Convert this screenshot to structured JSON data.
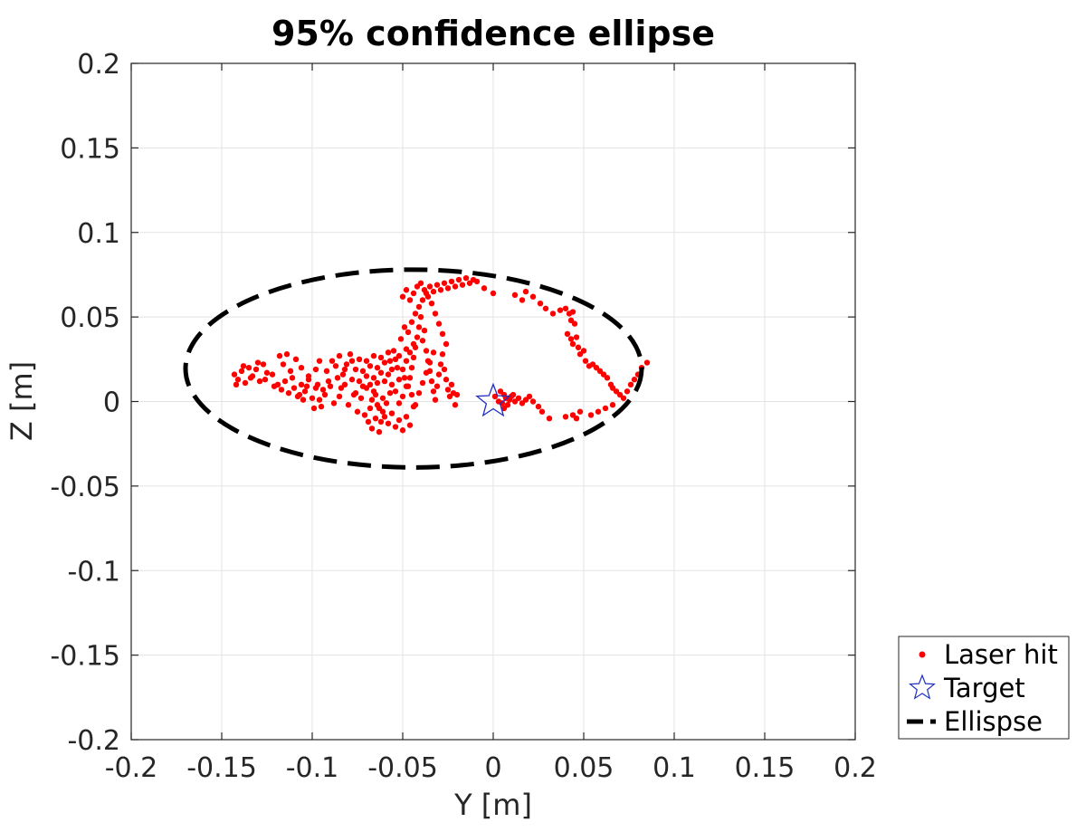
{
  "chart_data": {
    "type": "scatter",
    "title": "95% confidence ellipse",
    "xlabel": "Y [m]",
    "ylabel": "Z [m]",
    "xlim": [
      -0.2,
      0.2
    ],
    "ylim": [
      -0.2,
      0.2
    ],
    "xticks": [
      "-0.2",
      "-0.15",
      "-0.1",
      "-0.05",
      "0",
      "0.05",
      "0.1",
      "0.15",
      "0.2"
    ],
    "yticks": [
      "0.2",
      "0.15",
      "0.1",
      "0.05",
      "0",
      "-0.05",
      "-0.1",
      "-0.15",
      "-0.2"
    ],
    "grid": true,
    "legend": {
      "position": "bottom-right-outside",
      "entries": [
        "Laser hit",
        "Target",
        "Ellispse"
      ]
    },
    "series": [
      {
        "name": "Laser hit",
        "marker": "dot",
        "color": "#ff0000",
        "points": [
          [
            -0.143,
            0.016
          ],
          [
            -0.141,
            0.013
          ],
          [
            -0.139,
            0.018
          ],
          [
            -0.137,
            0.011
          ],
          [
            -0.135,
            0.02
          ],
          [
            -0.133,
            0.015
          ],
          [
            -0.131,
            0.019
          ],
          [
            -0.129,
            0.012
          ],
          [
            -0.127,
            0.022
          ],
          [
            -0.125,
            0.017
          ],
          [
            -0.142,
            0.01
          ],
          [
            -0.138,
            0.021
          ],
          [
            -0.134,
            0.014
          ],
          [
            -0.13,
            0.023
          ],
          [
            -0.126,
            0.013
          ],
          [
            -0.122,
            0.016
          ],
          [
            -0.119,
            0.01
          ],
          [
            -0.117,
            0.007
          ],
          [
            -0.115,
            0.012
          ],
          [
            -0.113,
            0.005
          ],
          [
            -0.121,
            0.009
          ],
          [
            -0.118,
            0.027
          ],
          [
            -0.116,
            0.022
          ],
          [
            -0.114,
            0.028
          ],
          [
            -0.112,
            0.018
          ],
          [
            -0.11,
            0.008
          ],
          [
            -0.108,
            0.003
          ],
          [
            -0.106,
            0.01
          ],
          [
            -0.104,
            0.006
          ],
          [
            -0.102,
            0.013
          ],
          [
            -0.1,
            0.002
          ],
          [
            -0.099,
            -0.004
          ],
          [
            -0.098,
            0.008
          ],
          [
            -0.096,
            0.001
          ],
          [
            -0.095,
            -0.003
          ],
          [
            -0.094,
            0.007
          ],
          [
            -0.092,
            0.018
          ],
          [
            -0.091,
            0.012
          ],
          [
            -0.089,
            0.024
          ],
          [
            -0.087,
            0.021
          ],
          [
            -0.085,
            0.027
          ],
          [
            -0.083,
            0.016
          ],
          [
            -0.081,
            0.022
          ],
          [
            -0.079,
            0.028
          ],
          [
            -0.078,
            0.013
          ],
          [
            -0.076,
            0.019
          ],
          [
            -0.074,
            0.025
          ],
          [
            -0.072,
            0.009
          ],
          [
            -0.07,
            0.015
          ],
          [
            -0.068,
            0.021
          ],
          [
            -0.066,
            0.027
          ],
          [
            -0.064,
            0.011
          ],
          [
            -0.062,
            0.017
          ],
          [
            -0.06,
            0.023
          ],
          [
            -0.058,
            0.029
          ],
          [
            -0.056,
            0.019
          ],
          [
            -0.054,
            0.025
          ],
          [
            -0.052,
            0.013
          ],
          [
            -0.085,
            0.003
          ],
          [
            -0.082,
            0.01
          ],
          [
            -0.08,
            -0.002
          ],
          [
            -0.077,
            0.004
          ],
          [
            -0.075,
            -0.006
          ],
          [
            -0.073,
            0.002
          ],
          [
            -0.071,
            -0.008
          ],
          [
            -0.069,
            -0.012
          ],
          [
            -0.067,
            -0.016
          ],
          [
            -0.065,
            -0.01
          ],
          [
            -0.063,
            -0.018
          ],
          [
            -0.061,
            -0.006
          ],
          [
            -0.068,
            -0.004
          ],
          [
            -0.066,
            0.006
          ],
          [
            -0.064,
            -0.002
          ],
          [
            -0.062,
            -0.012
          ],
          [
            -0.06,
            -0.009
          ],
          [
            -0.058,
            -0.013
          ],
          [
            -0.056,
            -0.007
          ],
          [
            -0.054,
            -0.015
          ],
          [
            -0.052,
            -0.011
          ],
          [
            -0.05,
            -0.017
          ],
          [
            -0.048,
            -0.009
          ],
          [
            -0.046,
            -0.014
          ],
          [
            -0.044,
            -0.003
          ],
          [
            -0.07,
            0.008
          ],
          [
            -0.067,
            0.001
          ],
          [
            -0.065,
            0.004
          ],
          [
            -0.063,
            -0.004
          ],
          [
            -0.061,
            0.002
          ],
          [
            -0.059,
            -0.001
          ],
          [
            -0.057,
            0.005
          ],
          [
            -0.05,
            0.003
          ],
          [
            -0.048,
            0.009
          ],
          [
            -0.046,
            0.014
          ],
          [
            -0.045,
            0.02
          ],
          [
            -0.044,
            0.026
          ],
          [
            -0.043,
            0.032
          ],
          [
            -0.042,
            0.038
          ],
          [
            -0.041,
            0.044
          ],
          [
            -0.04,
            0.05
          ],
          [
            -0.039,
            0.036
          ],
          [
            -0.038,
            0.042
          ],
          [
            -0.037,
            0.03
          ],
          [
            -0.036,
            0.024
          ],
          [
            -0.035,
            0.018
          ],
          [
            -0.034,
            0.012
          ],
          [
            -0.033,
            0.006
          ],
          [
            -0.032,
            0.001
          ],
          [
            -0.031,
            0.009
          ],
          [
            -0.03,
            0.016
          ],
          [
            -0.029,
            0.022
          ],
          [
            -0.028,
            0.028
          ],
          [
            -0.027,
            0.019
          ],
          [
            -0.026,
            0.013
          ],
          [
            -0.025,
            0.007
          ],
          [
            -0.024,
            0.003
          ],
          [
            -0.023,
            0.01
          ],
          [
            -0.022,
            0.005
          ],
          [
            -0.021,
            -0.002
          ],
          [
            -0.02,
            0.004
          ],
          [
            -0.026,
            0.034
          ],
          [
            -0.028,
            0.04
          ],
          [
            -0.03,
            0.046
          ],
          [
            -0.032,
            0.052
          ],
          [
            -0.034,
            0.058
          ],
          [
            -0.036,
            0.062
          ],
          [
            -0.038,
            0.066
          ],
          [
            -0.04,
            0.07
          ],
          [
            -0.042,
            0.068
          ],
          [
            -0.044,
            0.064
          ],
          [
            -0.046,
            0.06
          ],
          [
            -0.048,
            0.066
          ],
          [
            -0.05,
            0.062
          ],
          [
            -0.047,
            0.041
          ],
          [
            -0.049,
            0.044
          ],
          [
            -0.051,
            0.037
          ],
          [
            -0.045,
            0.047
          ],
          [
            -0.043,
            0.052
          ],
          [
            -0.041,
            0.056
          ],
          [
            -0.039,
            0.06
          ],
          [
            -0.037,
            0.064
          ],
          [
            -0.035,
            0.068
          ],
          [
            -0.033,
            0.065
          ],
          [
            -0.031,
            0.069
          ],
          [
            -0.029,
            0.066
          ],
          [
            -0.027,
            0.07
          ],
          [
            -0.025,
            0.067
          ],
          [
            -0.023,
            0.071
          ],
          [
            -0.021,
            0.068
          ],
          [
            -0.019,
            0.072
          ],
          [
            -0.017,
            0.069
          ],
          [
            -0.015,
            0.073
          ],
          [
            -0.013,
            0.07
          ],
          [
            -0.011,
            0.072
          ],
          [
            -0.009,
            0.071
          ],
          [
            -0.005,
            0.067
          ],
          [
            0.0,
            0.064
          ],
          [
            -0.044,
            0.034
          ],
          [
            -0.046,
            0.029
          ],
          [
            -0.048,
            0.024
          ],
          [
            -0.05,
            0.019
          ],
          [
            0.001,
            0.003
          ],
          [
            0.003,
            0.0
          ],
          [
            0.005,
            -0.001
          ],
          [
            0.006,
            0.004
          ],
          [
            0.007,
            0.002
          ],
          [
            0.008,
            -0.002
          ],
          [
            0.009,
            0.001
          ],
          [
            0.01,
            0.003
          ],
          [
            0.012,
            0.0
          ],
          [
            0.014,
            0.002
          ],
          [
            0.016,
            -0.001
          ],
          [
            0.018,
            0.001
          ],
          [
            0.02,
            0.003
          ],
          [
            0.022,
            0.0
          ],
          [
            0.025,
            -0.003
          ],
          [
            0.004,
            0.006
          ],
          [
            0.006,
            -0.004
          ],
          [
            0.011,
            0.004
          ],
          [
            0.027,
            -0.006
          ],
          [
            0.031,
            -0.01
          ],
          [
            0.012,
            0.063
          ],
          [
            0.016,
            0.06
          ],
          [
            0.018,
            0.065
          ],
          [
            0.022,
            0.062
          ],
          [
            0.026,
            0.058
          ],
          [
            0.029,
            0.055
          ],
          [
            0.033,
            0.052
          ],
          [
            0.037,
            0.054
          ],
          [
            0.04,
            0.055
          ],
          [
            0.042,
            0.052
          ],
          [
            0.043,
            0.048
          ],
          [
            0.044,
            0.053
          ],
          [
            0.045,
            0.046
          ],
          [
            0.041,
            0.04
          ],
          [
            0.043,
            0.037
          ],
          [
            0.044,
            0.034
          ],
          [
            0.046,
            0.038
          ],
          [
            0.047,
            0.032
          ],
          [
            0.048,
            0.028
          ],
          [
            0.05,
            0.03
          ],
          [
            0.051,
            0.024
          ],
          [
            0.053,
            0.021
          ],
          [
            0.055,
            0.022
          ],
          [
            0.057,
            0.02
          ],
          [
            0.059,
            0.018
          ],
          [
            0.061,
            0.016
          ],
          [
            0.063,
            0.014
          ],
          [
            0.065,
            0.01
          ],
          [
            0.066,
            0.008
          ],
          [
            0.068,
            0.006
          ],
          [
            0.07,
            0.004
          ],
          [
            0.072,
            0.002
          ],
          [
            0.074,
            0.006
          ],
          [
            0.076,
            0.01
          ],
          [
            0.078,
            0.013
          ],
          [
            0.08,
            0.016
          ],
          [
            0.082,
            0.02
          ],
          [
            0.085,
            0.023
          ],
          [
            0.046,
            -0.01
          ],
          [
            0.044,
            -0.008
          ],
          [
            0.04,
            -0.009
          ],
          [
            0.054,
            -0.008
          ],
          [
            0.058,
            -0.006
          ],
          [
            0.062,
            -0.004
          ],
          [
            0.066,
            -0.002
          ],
          [
            0.048,
            -0.006
          ],
          [
            -0.096,
            0.024
          ],
          [
            -0.098,
            0.019
          ],
          [
            -0.102,
            0.015
          ],
          [
            -0.106,
            0.02
          ],
          [
            -0.109,
            0.025
          ],
          [
            -0.111,
            0.014
          ],
          [
            -0.107,
            0.004
          ],
          [
            -0.105,
            0.001
          ],
          [
            -0.103,
            0.009
          ],
          [
            -0.097,
            0.01
          ],
          [
            -0.093,
            0.004
          ],
          [
            -0.09,
            0.009
          ],
          [
            -0.088,
            -0.001
          ],
          [
            -0.086,
            0.014
          ],
          [
            -0.084,
            0.008
          ],
          [
            -0.082,
            0.019
          ],
          [
            -0.078,
            0.024
          ],
          [
            -0.076,
            0.005
          ],
          [
            -0.074,
            0.012
          ],
          [
            -0.072,
            0.018
          ],
          [
            -0.07,
            0.024
          ],
          [
            -0.068,
            0.01
          ],
          [
            -0.066,
            0.014
          ],
          [
            -0.064,
            0.02
          ],
          [
            -0.062,
            0.026
          ],
          [
            -0.06,
            0.012
          ],
          [
            -0.058,
            0.016
          ],
          [
            -0.056,
            0.01
          ],
          [
            -0.054,
            0.006
          ],
          [
            -0.052,
            -0.001
          ],
          [
            -0.048,
            0.031
          ],
          [
            -0.052,
            0.027
          ],
          [
            -0.055,
            0.03
          ],
          [
            -0.057,
            0.024
          ],
          [
            -0.053,
            0.02
          ],
          [
            -0.049,
            0.014
          ],
          [
            -0.047,
            0.009
          ],
          [
            -0.045,
            0.004
          ],
          [
            -0.043,
            -0.002
          ],
          [
            -0.041,
            0.005
          ],
          [
            -0.039,
            0.011
          ],
          [
            -0.037,
            0.017
          ],
          [
            -0.035,
            0.023
          ],
          [
            -0.033,
            0.029
          ]
        ]
      },
      {
        "name": "Target",
        "marker": "star",
        "color": "#1f2fbf",
        "points": [
          [
            0.0,
            0.0
          ]
        ]
      },
      {
        "name": "Ellispse",
        "style": "dashed",
        "color": "#000000",
        "center": [
          -0.044,
          0.0195
        ],
        "semi_axes": [
          0.126,
          0.0585
        ],
        "rotation_deg": 0
      }
    ]
  }
}
